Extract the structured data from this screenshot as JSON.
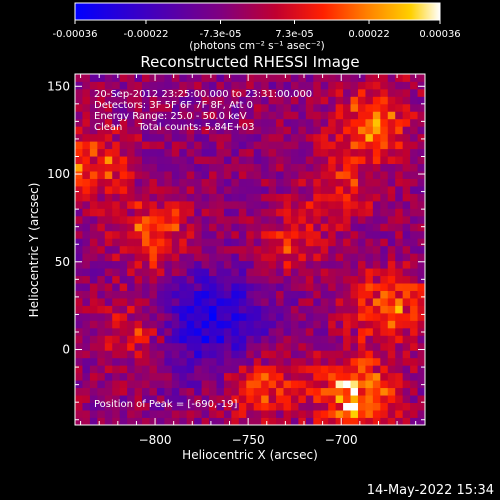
{
  "chart_data": {
    "type": "heatmap",
    "title": "Reconstructed RHESSI Image",
    "colorbar": {
      "tick_labels": [
        "-0.00036",
        "-0.00022",
        "-7.3e-05",
        "7.3e-05",
        "0.00022",
        "0.00036"
      ],
      "tick_values": [
        -0.00036,
        -0.00022,
        -7.3e-05,
        7.3e-05,
        0.00022,
        0.00036
      ],
      "range": [
        -0.00036,
        0.00036
      ],
      "units_label": "(photons cm⁻² s⁻¹ asec⁻²)",
      "colormap": [
        "#0000ff",
        "#4000c0",
        "#800080",
        "#c00030",
        "#ff2000",
        "#ff8000",
        "#ffd000",
        "#ffffff"
      ]
    },
    "xlabel": "Heliocentric X (arcsec)",
    "ylabel": "Heliocentric Y (arcsec)",
    "xlim": [
      -843,
      -655
    ],
    "ylim": [
      -43,
      157
    ],
    "x_ticks": [
      -800,
      -750,
      -700
    ],
    "x_tick_labels": [
      "−800",
      "−750",
      "−700"
    ],
    "y_ticks": [
      0,
      50,
      100,
      150
    ],
    "y_tick_labels": [
      "0",
      "50",
      "100",
      "150"
    ],
    "annotations": [
      "20-Sep-2012 23:25:00.000 to 23:31:00.000",
      "Detectors: 3F 5F 6F 7F 8F, Att 0",
      "Energy Range: 25.0 - 50.0 keV",
      "Clean     Total counts: 5.84E+03"
    ],
    "peak_label": "Position of Peak = [-690,-19]",
    "peak_position": [
      -690,
      -19
    ],
    "hot_regions": [
      {
        "x": -693,
        "y": -25,
        "value": 0.00036
      },
      {
        "x": -675,
        "y": 25,
        "value": 0.00028
      },
      {
        "x": -683,
        "y": 130,
        "value": 0.00026
      },
      {
        "x": -745,
        "y": -20,
        "value": 0.00024
      },
      {
        "x": -800,
        "y": 65,
        "value": 0.00022
      },
      {
        "x": -833,
        "y": 105,
        "value": 0.00022
      },
      {
        "x": -810,
        "y": 10,
        "value": 0.00018
      },
      {
        "x": -728,
        "y": 60,
        "value": 0.00016
      },
      {
        "x": -700,
        "y": 95,
        "value": 0.00015
      }
    ]
  },
  "footer": {
    "timestamp": "14-May-2022 15:34"
  }
}
